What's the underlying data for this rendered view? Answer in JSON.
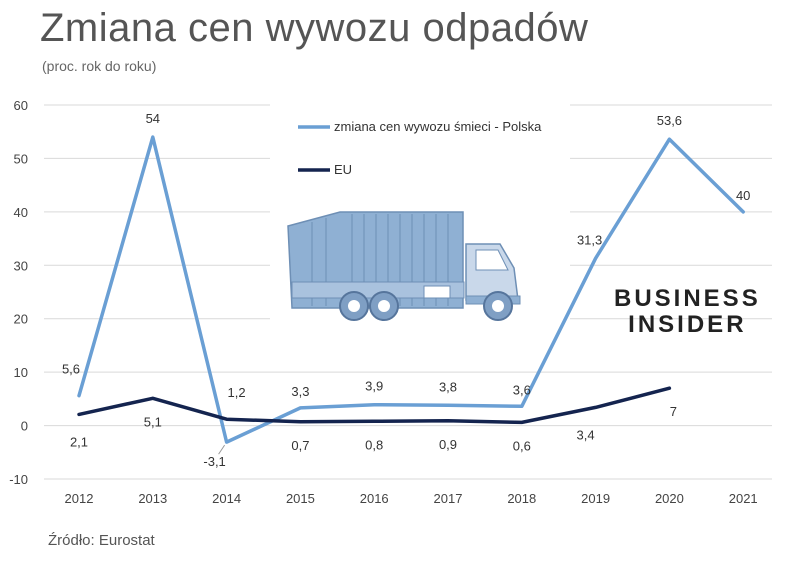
{
  "header": {
    "title": "Zmiana cen wywozu odpadów",
    "subtitle": "(proc. rok do roku)"
  },
  "footer": {
    "source": "Źródło: Eurostat"
  },
  "logo": {
    "line1": "BUSINESS",
    "line2": "INSIDER"
  },
  "chart_data": {
    "type": "line",
    "title": "Zmiana cen wywozu odpadów",
    "subtitle": "(proc. rok do roku)",
    "categories": [
      "2012",
      "2013",
      "2014",
      "2015",
      "2016",
      "2017",
      "2018",
      "2019",
      "2020",
      "2021"
    ],
    "ylim": [
      -10,
      60
    ],
    "yticks": [
      -10,
      0,
      10,
      20,
      30,
      40,
      50,
      60
    ],
    "grid": true,
    "legend_position": "top-center",
    "series": [
      {
        "name": "zmiana cen wywozu śmieci - Polska",
        "color": "#6a9fd4",
        "values": [
          5.6,
          54,
          -3.1,
          3.3,
          3.9,
          3.8,
          3.6,
          31.3,
          53.6,
          40
        ],
        "labels": [
          "5,6",
          "54",
          "-3,1",
          "3,3",
          "3,9",
          "3,8",
          "3,6",
          "31,3",
          "53,6",
          "40"
        ]
      },
      {
        "name": "EU",
        "color": "#14244f",
        "values": [
          2.1,
          5.1,
          1.2,
          0.7,
          0.8,
          0.9,
          0.6,
          3.4,
          7,
          null
        ],
        "labels": [
          "2,1",
          "5,1",
          "1,2",
          "0,7",
          "0,8",
          "0,9",
          "0,6",
          "3,4",
          "7",
          null
        ]
      }
    ]
  },
  "illustration": {
    "icon": "garbage-truck-icon",
    "color": "#8aa8c8"
  }
}
